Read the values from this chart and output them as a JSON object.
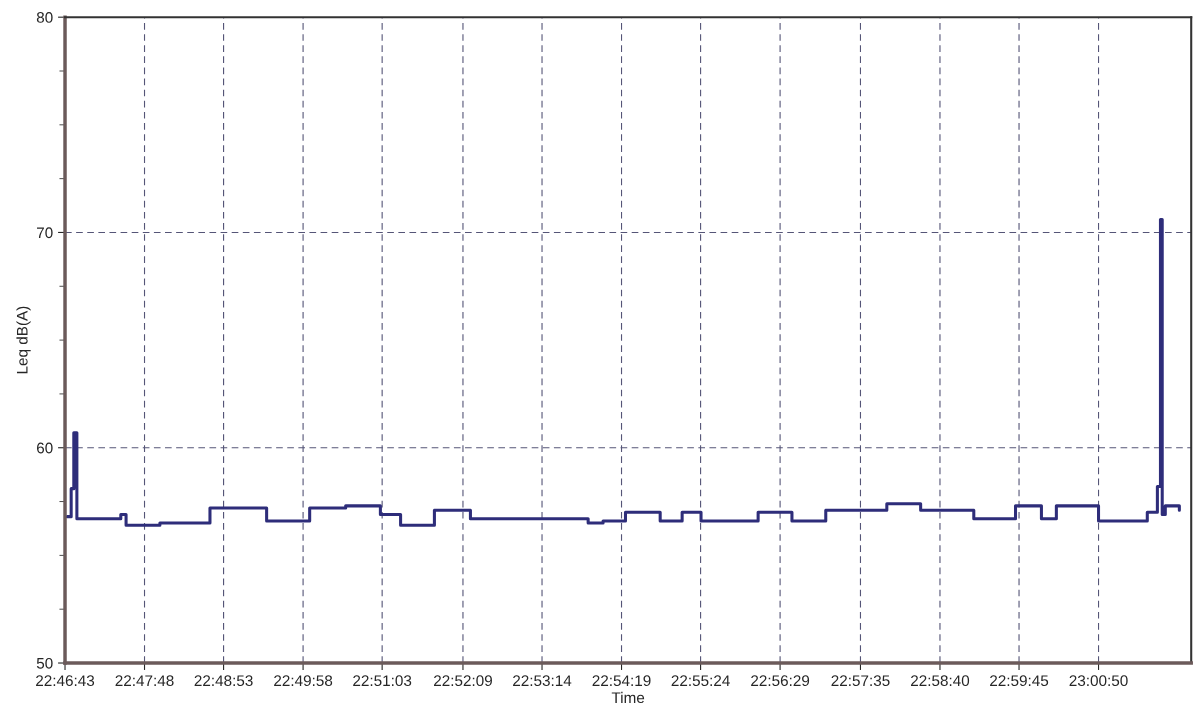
{
  "chart_data": {
    "type": "step",
    "xlabel": "Time",
    "ylabel": "Leq dB(A)",
    "xlim": [
      22.7786,
      23.035
    ],
    "ylim": [
      50,
      80
    ],
    "yticks": [
      50,
      60,
      70,
      80
    ],
    "xticks": [
      {
        "value": 22.7786,
        "label": "22:46:43"
      },
      {
        "value": 22.7967,
        "label": "22:47:48"
      },
      {
        "value": 22.8147,
        "label": "22:48:53"
      },
      {
        "value": 22.8328,
        "label": "22:49:58"
      },
      {
        "value": 22.8508,
        "label": "22:51:03"
      },
      {
        "value": 22.8692,
        "label": "22:52:09"
      },
      {
        "value": 22.8872,
        "label": "22:53:14"
      },
      {
        "value": 22.9053,
        "label": "22:54:19"
      },
      {
        "value": 22.9233,
        "label": "22:55:24"
      },
      {
        "value": 22.9414,
        "label": "22:56:29"
      },
      {
        "value": 22.9597,
        "label": "22:57:35"
      },
      {
        "value": 22.9778,
        "label": "22:58:40"
      },
      {
        "value": 22.9958,
        "label": "22:59:45"
      },
      {
        "value": 23.0139,
        "label": "23:00:50"
      }
    ],
    "grid": true,
    "line_style": "solid",
    "marker": "none",
    "x": [
      22.7791,
      22.78,
      22.7806,
      22.7813,
      22.7913,
      22.7925,
      22.8002,
      22.8116,
      22.8245,
      22.8343,
      22.8425,
      22.8504,
      22.855,
      22.8627,
      22.8709,
      22.8829,
      22.8977,
      22.9011,
      22.9062,
      22.9141,
      22.9191,
      22.9234,
      22.9364,
      22.9441,
      22.9518,
      22.9657,
      22.9734,
      22.9855,
      22.995,
      23.0009,
      23.0043,
      23.0139,
      23.025,
      23.0273,
      23.028,
      23.0284,
      23.0291,
      23.0323
    ],
    "series": [
      {
        "color": "#2e2d7a",
        "values": [
          56.8,
          58.1,
          60.7,
          56.7,
          56.9,
          56.4,
          56.5,
          57.2,
          56.6,
          57.2,
          57.3,
          56.9,
          56.4,
          57.1,
          56.7,
          56.7,
          56.5,
          56.6,
          57.0,
          56.6,
          57.0,
          56.6,
          57.0,
          56.6,
          57.1,
          57.4,
          57.1,
          56.7,
          57.3,
          56.7,
          57.3,
          56.6,
          57.0,
          58.2,
          70.6,
          56.9,
          57.3,
          57.1
        ]
      }
    ]
  }
}
